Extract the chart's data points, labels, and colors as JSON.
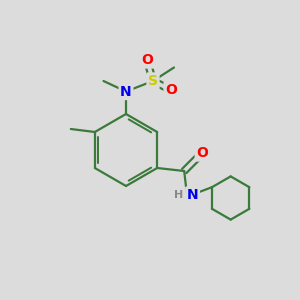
{
  "background_color": "#dcdcdc",
  "bond_color": "#3a7a3a",
  "atom_colors": {
    "N": "#0000ee",
    "O": "#ff0000",
    "S": "#cccc00",
    "C": "#000000"
  },
  "bond_width": 1.6,
  "figsize": [
    3.0,
    3.0
  ],
  "dpi": 100
}
